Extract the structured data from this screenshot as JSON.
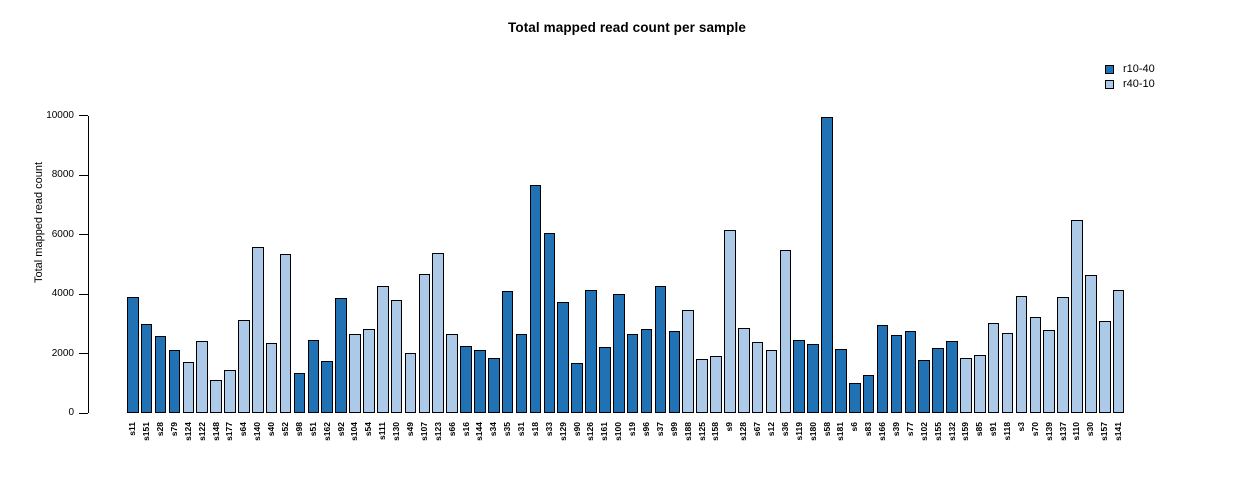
{
  "title": "Total mapped read count per sample",
  "y_axis": {
    "label": "Total mapped read count",
    "ticks": [
      0,
      2000,
      4000,
      6000,
      8000,
      10000
    ]
  },
  "legend": {
    "items": [
      {
        "label": "r10-40",
        "color": "#2171B5"
      },
      {
        "label": "r40-10",
        "color": "#ADC9E8"
      }
    ]
  },
  "colors": {
    "r10-40": "#2171B5",
    "r40-10": "#ADC9E8",
    "bar_border": "#000000"
  },
  "chart_data": {
    "type": "bar",
    "title": "Total mapped read count per sample",
    "xlabel": "",
    "ylabel": "Total mapped read count",
    "ylim": [
      0,
      10000
    ],
    "yticks": [
      0,
      2000,
      4000,
      6000,
      8000,
      10000
    ],
    "grid": false,
    "legend_position": "top-right",
    "series": [
      {
        "name": "r10-40",
        "color": "#2171B5"
      },
      {
        "name": "r40-10",
        "color": "#ADC9E8"
      }
    ],
    "samples": [
      {
        "label": "s11",
        "group": "r10-40",
        "value": 3890
      },
      {
        "label": "s151",
        "group": "r10-40",
        "value": 3000
      },
      {
        "label": "s28",
        "group": "r10-40",
        "value": 2590
      },
      {
        "label": "s79",
        "group": "r10-40",
        "value": 2140
      },
      {
        "label": "s124",
        "group": "r40-10",
        "value": 1740
      },
      {
        "label": "s122",
        "group": "r40-10",
        "value": 2430
      },
      {
        "label": "s148",
        "group": "r40-10",
        "value": 1110
      },
      {
        "label": "s177",
        "group": "r40-10",
        "value": 1440
      },
      {
        "label": "s64",
        "group": "r40-10",
        "value": 3140
      },
      {
        "label": "s140",
        "group": "r40-10",
        "value": 5580
      },
      {
        "label": "s40",
        "group": "r40-10",
        "value": 2360
      },
      {
        "label": "s52",
        "group": "r40-10",
        "value": 5340
      },
      {
        "label": "s98",
        "group": "r10-40",
        "value": 1350
      },
      {
        "label": "s51",
        "group": "r10-40",
        "value": 2470
      },
      {
        "label": "s162",
        "group": "r10-40",
        "value": 1760
      },
      {
        "label": "s92",
        "group": "r10-40",
        "value": 3860
      },
      {
        "label": "s104",
        "group": "r40-10",
        "value": 2650
      },
      {
        "label": "s54",
        "group": "r40-10",
        "value": 2830
      },
      {
        "label": "s111",
        "group": "r40-10",
        "value": 4290
      },
      {
        "label": "s130",
        "group": "r40-10",
        "value": 3820
      },
      {
        "label": "s49",
        "group": "r40-10",
        "value": 2020
      },
      {
        "label": "s107",
        "group": "r40-10",
        "value": 4690
      },
      {
        "label": "s123",
        "group": "r40-10",
        "value": 5400
      },
      {
        "label": "s66",
        "group": "r40-10",
        "value": 2650
      },
      {
        "label": "s16",
        "group": "r10-40",
        "value": 2270
      },
      {
        "label": "s144",
        "group": "r10-40",
        "value": 2110
      },
      {
        "label": "s34",
        "group": "r10-40",
        "value": 1850
      },
      {
        "label": "s35",
        "group": "r10-40",
        "value": 4100
      },
      {
        "label": "s31",
        "group": "r10-40",
        "value": 2670
      },
      {
        "label": "s18",
        "group": "r10-40",
        "value": 7660
      },
      {
        "label": "s33",
        "group": "r10-40",
        "value": 6050
      },
      {
        "label": "s129",
        "group": "r10-40",
        "value": 3730
      },
      {
        "label": "s90",
        "group": "r10-40",
        "value": 1690
      },
      {
        "label": "s126",
        "group": "r10-40",
        "value": 4130
      },
      {
        "label": "s161",
        "group": "r10-40",
        "value": 2230
      },
      {
        "label": "s100",
        "group": "r10-40",
        "value": 4000
      },
      {
        "label": "s19",
        "group": "r10-40",
        "value": 2650
      },
      {
        "label": "s96",
        "group": "r10-40",
        "value": 2840
      },
      {
        "label": "s37",
        "group": "r10-40",
        "value": 4290
      },
      {
        "label": "s99",
        "group": "r10-40",
        "value": 2750
      },
      {
        "label": "s188",
        "group": "r40-10",
        "value": 3460
      },
      {
        "label": "s125",
        "group": "r40-10",
        "value": 1840
      },
      {
        "label": "s158",
        "group": "r40-10",
        "value": 1910
      },
      {
        "label": "s9",
        "group": "r40-10",
        "value": 6160
      },
      {
        "label": "s128",
        "group": "r40-10",
        "value": 2850
      },
      {
        "label": "s67",
        "group": "r40-10",
        "value": 2390
      },
      {
        "label": "s12",
        "group": "r40-10",
        "value": 2110
      },
      {
        "label": "s36",
        "group": "r40-10",
        "value": 5490
      },
      {
        "label": "s119",
        "group": "r10-40",
        "value": 2470
      },
      {
        "label": "s180",
        "group": "r10-40",
        "value": 2340
      },
      {
        "label": "s58",
        "group": "r10-40",
        "value": 9950
      },
      {
        "label": "s181",
        "group": "r10-40",
        "value": 2170
      },
      {
        "label": "s6",
        "group": "r10-40",
        "value": 1010
      },
      {
        "label": "s83",
        "group": "r10-40",
        "value": 1290
      },
      {
        "label": "s166",
        "group": "r10-40",
        "value": 2980
      },
      {
        "label": "s39",
        "group": "r10-40",
        "value": 2620
      },
      {
        "label": "s77",
        "group": "r10-40",
        "value": 2780
      },
      {
        "label": "s102",
        "group": "r10-40",
        "value": 1780
      },
      {
        "label": "s155",
        "group": "r10-40",
        "value": 2180
      },
      {
        "label": "s132",
        "group": "r10-40",
        "value": 2420
      },
      {
        "label": "s159",
        "group": "r40-10",
        "value": 1850
      },
      {
        "label": "s85",
        "group": "r40-10",
        "value": 1960
      },
      {
        "label": "s91",
        "group": "r40-10",
        "value": 3050
      },
      {
        "label": "s118",
        "group": "r40-10",
        "value": 2710
      },
      {
        "label": "s3",
        "group": "r40-10",
        "value": 3950
      },
      {
        "label": "s70",
        "group": "r40-10",
        "value": 3230
      },
      {
        "label": "s139",
        "group": "r40-10",
        "value": 2810
      },
      {
        "label": "s137",
        "group": "r40-10",
        "value": 3920
      },
      {
        "label": "s110",
        "group": "r40-10",
        "value": 6500
      },
      {
        "label": "s30",
        "group": "r40-10",
        "value": 4630
      },
      {
        "label": "s157",
        "group": "r40-10",
        "value": 3090
      },
      {
        "label": "s141",
        "group": "r40-10",
        "value": 4150
      }
    ]
  }
}
